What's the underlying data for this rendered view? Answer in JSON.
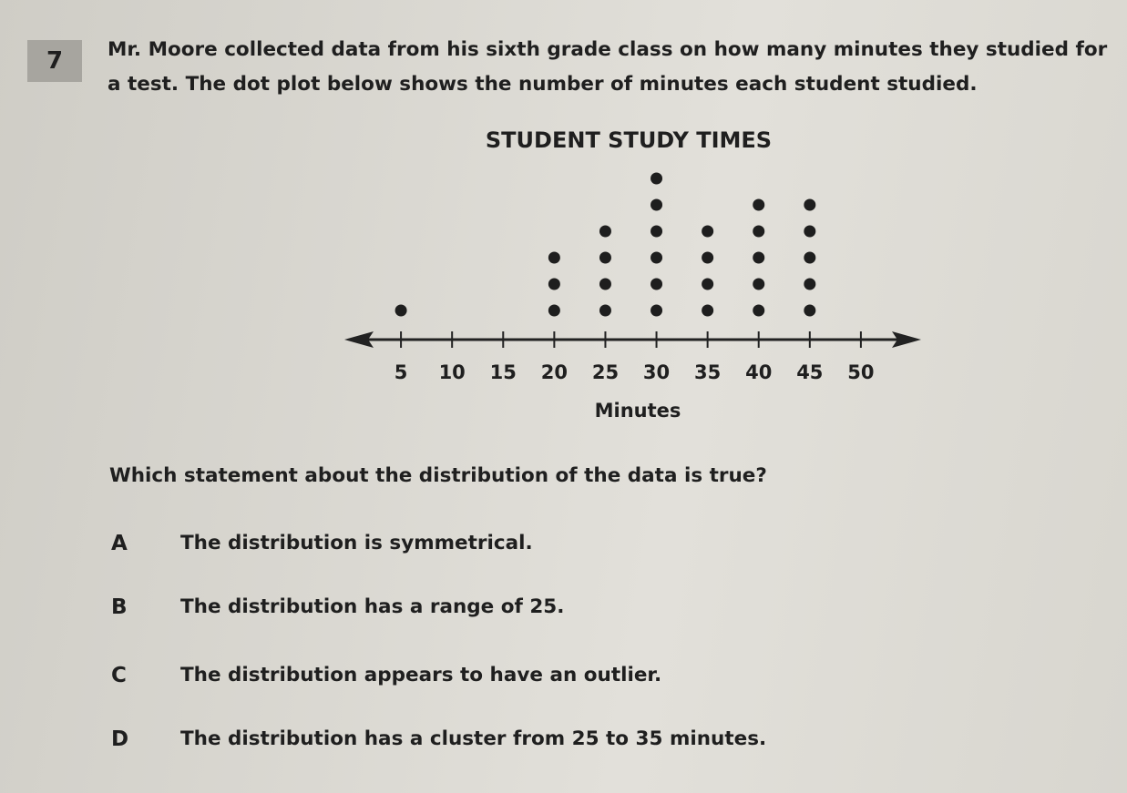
{
  "question": {
    "number": "7",
    "prompt": "Mr. Moore collected data from his sixth grade class on how many minutes they studied for a test. The dot plot below shows the number of minutes each student studied.",
    "chart_data": {
      "type": "dot",
      "title": "STUDENT STUDY TIMES",
      "x_label": "Minutes",
      "x": [
        5,
        10,
        15,
        20,
        25,
        30,
        35,
        40,
        45,
        50
      ],
      "values": [
        1,
        0,
        0,
        3,
        4,
        6,
        4,
        5,
        5,
        0
      ],
      "color": "#1e1e1e",
      "xlim": [
        0,
        55
      ],
      "xticks": [
        5,
        10,
        15,
        20,
        25,
        30,
        35,
        40,
        45,
        50
      ]
    },
    "stem": "Which statement about the distribution of the data is true?",
    "options": [
      {
        "letter": "A",
        "text": "The distribution is symmetrical."
      },
      {
        "letter": "B",
        "text": "The distribution has a range of 25."
      },
      {
        "letter": "C",
        "text": "The distribution appears to have an outlier."
      },
      {
        "letter": "D",
        "text": "The distribution has a cluster from 25 to 35 minutes."
      }
    ]
  }
}
